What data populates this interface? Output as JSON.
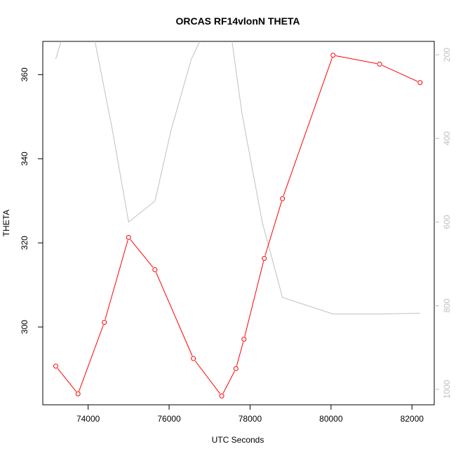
{
  "chart_data": {
    "type": "line",
    "title": "ORCAS RF14vlonN THETA",
    "xlabel": "UTC Seconds",
    "ylabel": "THETA",
    "xlim": [
      72880,
      82550
    ],
    "ylim": [
      281.5,
      367.9
    ],
    "y2lim": [
      1037,
      168
    ],
    "y2_reversed": true,
    "x_ticks": [
      74000,
      76000,
      78000,
      80000,
      82000
    ],
    "y_ticks": [
      300,
      320,
      340,
      360
    ],
    "y2_ticks": [
      200,
      400,
      600,
      800,
      1000
    ],
    "grid": false,
    "legend": "none",
    "colors": {
      "theta": "#ff0000",
      "pressure": "#c0c0c0",
      "axis": "#000000"
    },
    "series": [
      {
        "axis": "left",
        "style": "line-with-circles",
        "x": [
          73200,
          73750,
          74400,
          75000,
          75650,
          76600,
          77300,
          77650,
          77850,
          78350,
          78800,
          80050,
          81200,
          82200
        ],
        "y": [
          290.7,
          284.1,
          301.1,
          321.3,
          313.6,
          292.5,
          283.6,
          290.1,
          297.1,
          316.3,
          330.5,
          364.6,
          362.5,
          358.1
        ]
      },
      {
        "axis": "right",
        "style": "line",
        "x": [
          73200,
          73450,
          74050,
          74600,
          75000,
          75650,
          76050,
          76550,
          76950,
          77500,
          77800,
          78300,
          78800,
          80050,
          81200,
          82200
        ],
        "y": [
          210,
          130,
          110,
          380,
          600,
          550,
          380,
          210,
          130,
          130,
          340,
          600,
          780,
          820,
          820,
          818
        ]
      }
    ]
  }
}
